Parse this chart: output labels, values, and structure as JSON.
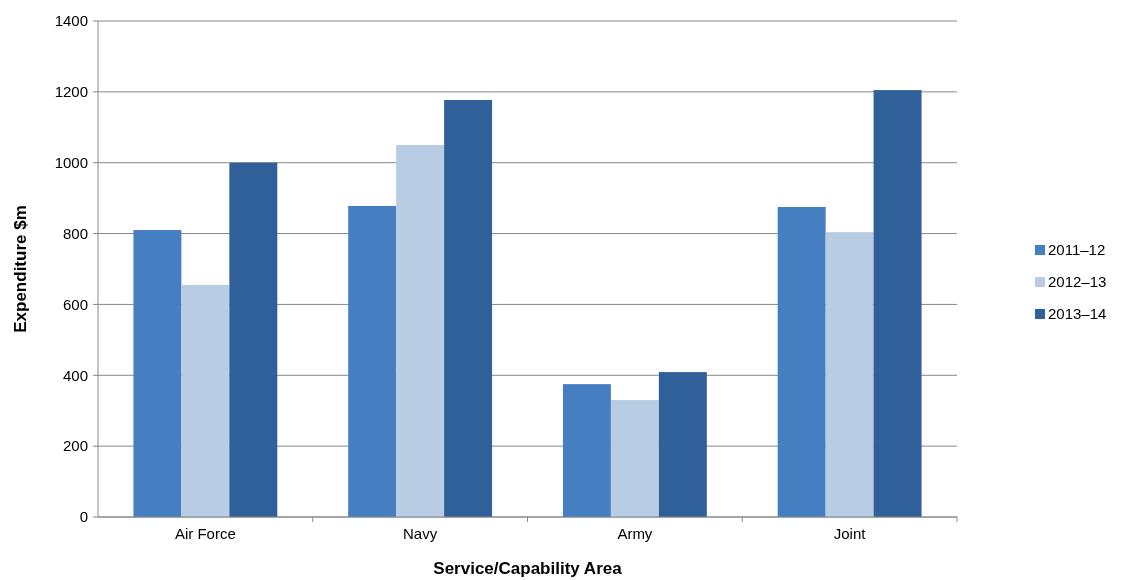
{
  "chart_data": {
    "type": "bar",
    "xlabel": "Service/Capability Area",
    "ylabel": "Expenditure $m",
    "categories": [
      "Air Force",
      "Navy",
      "Army",
      "Joint"
    ],
    "series": [
      {
        "name": "2011–12",
        "color": "#457ec1",
        "values": [
          810,
          878,
          375,
          875
        ]
      },
      {
        "name": "2012–13",
        "color": "#b8cce4",
        "values": [
          655,
          1050,
          330,
          804
        ]
      },
      {
        "name": "2013–14",
        "color": "#30609a",
        "values": [
          1000,
          1177,
          409,
          1205
        ]
      }
    ],
    "ylim": [
      0,
      1400
    ],
    "yticks": [
      0,
      200,
      400,
      600,
      800,
      1000,
      1200,
      1400
    ],
    "grid": "y",
    "legend": "right"
  }
}
